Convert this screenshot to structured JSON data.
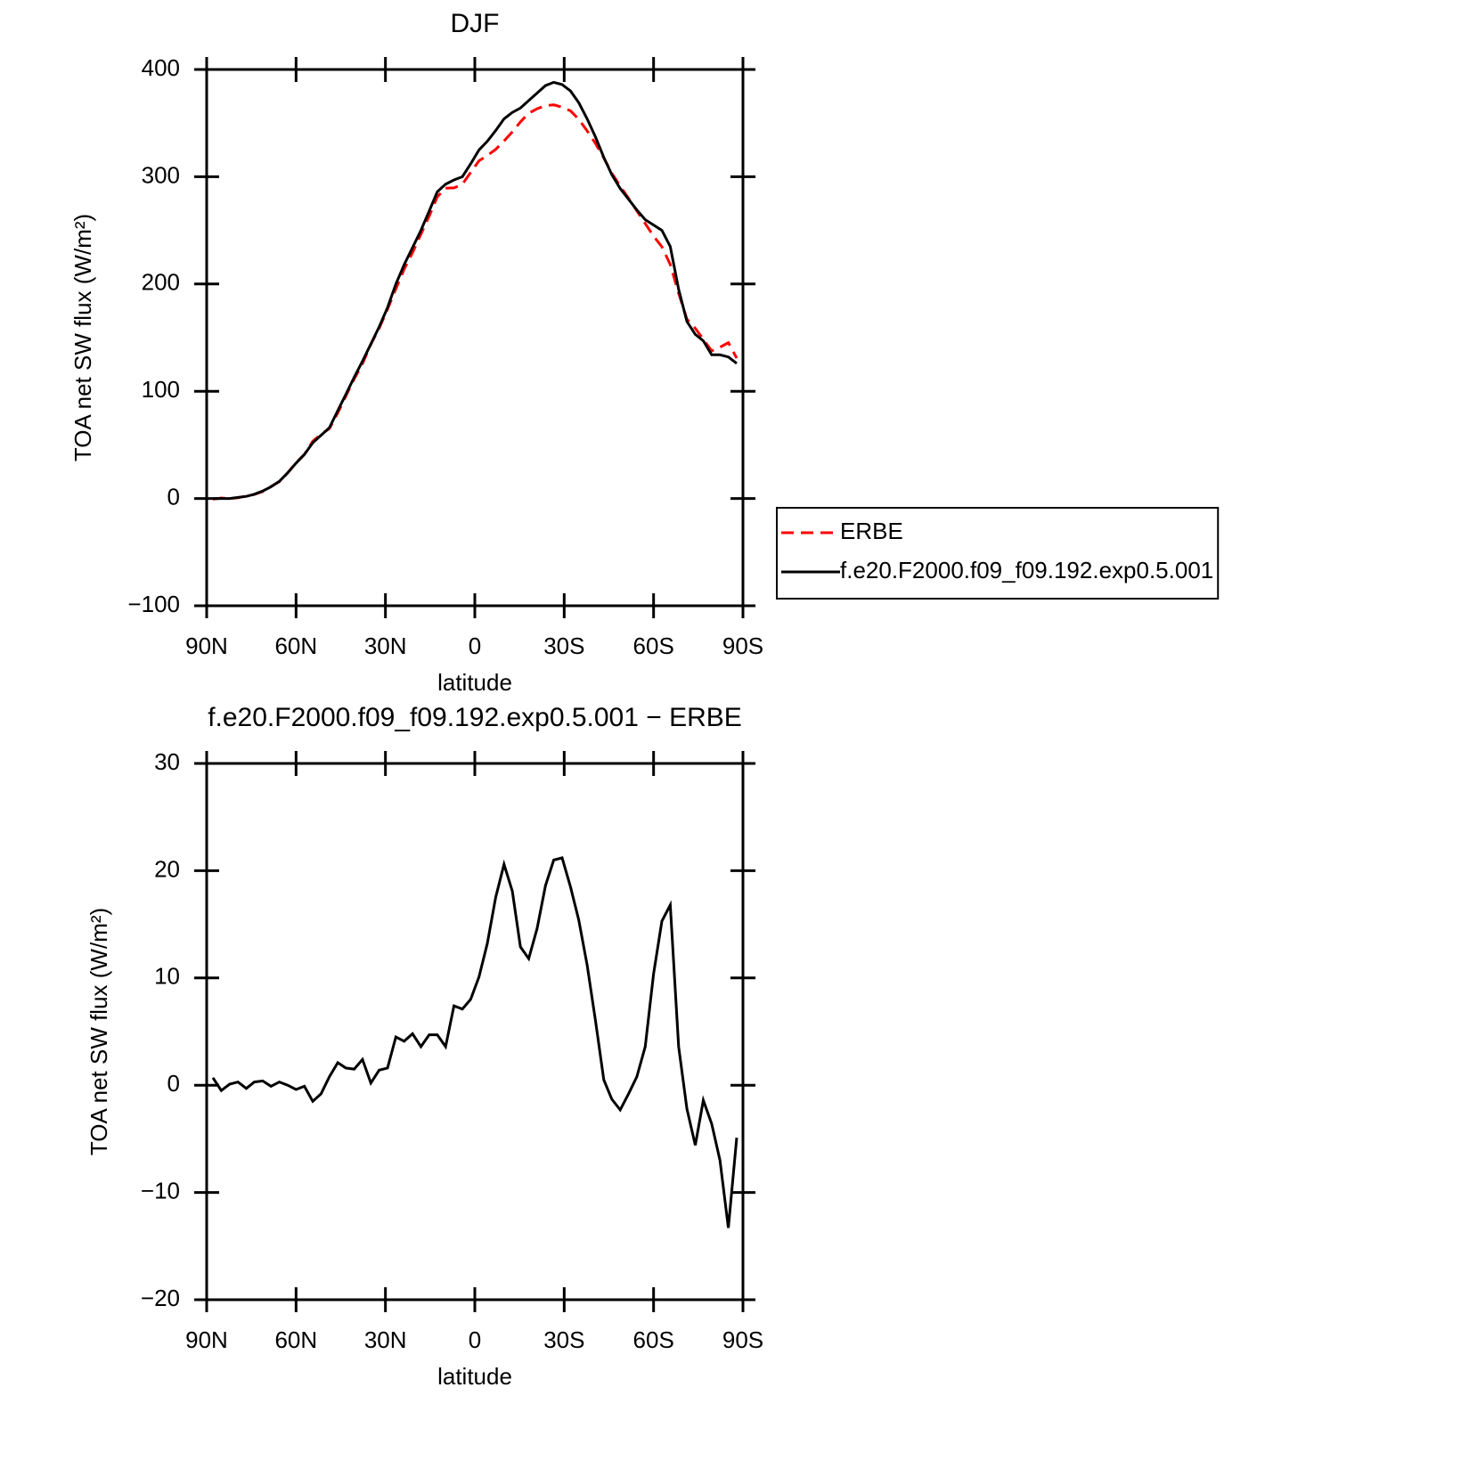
{
  "chart_data": [
    {
      "type": "line",
      "title": "DJF",
      "ylabel": "TOA net SW flux (W/m²)",
      "xlabel": "latitude",
      "x": [
        87.9,
        85.1,
        82.3,
        79.5,
        76.7,
        74.0,
        71.2,
        68.4,
        65.6,
        62.8,
        60.0,
        57.2,
        54.4,
        51.6,
        48.8,
        46.0,
        43.3,
        40.5,
        37.7,
        34.9,
        32.1,
        29.3,
        26.5,
        23.7,
        20.9,
        18.1,
        15.3,
        12.6,
        9.8,
        7.0,
        4.2,
        1.4,
        -1.4,
        -4.2,
        -7.0,
        -9.8,
        -12.6,
        -15.3,
        -18.1,
        -20.9,
        -23.7,
        -26.5,
        -29.3,
        -32.1,
        -34.9,
        -37.7,
        -40.5,
        -43.3,
        -46.0,
        -48.8,
        -51.6,
        -54.4,
        -57.2,
        -60.0,
        -62.8,
        -65.6,
        -68.4,
        -71.2,
        -74.0,
        -76.7,
        -79.5,
        -82.3,
        -85.1,
        -87.9
      ],
      "series": [
        {
          "name": "ERBE",
          "color": "#ff0000",
          "linestyle": "dashed",
          "values": [
            -0.7,
            0.5,
            -0.1,
            0.7,
            2.3,
            3.7,
            6.6,
            11.1,
            15.7,
            24,
            33.4,
            41.1,
            53.5,
            59.8,
            65.2,
            79.9,
            95.4,
            111.5,
            125.6,
            143.8,
            158.6,
            176.4,
            195.5,
            213.9,
            229.2,
            246.4,
            263.3,
            281.3,
            289.4,
            289.6,
            292.9,
            304,
            314.9,
            319.8,
            325.5,
            333.4,
            341.9,
            351.1,
            359.2,
            363.4,
            366.4,
            367,
            364.8,
            361.5,
            353.6,
            342.8,
            331,
            317.5,
            303.3,
            291.3,
            279.8,
            268.2,
            256.4,
            244.6,
            234.7,
            218.2,
            191.4,
            167.2,
            158.6,
            148.4,
            137.6,
            141,
            145.3,
            130.9
          ]
        },
        {
          "name": "f.e20.F2000.f09_f09.192.exp0.5.001",
          "color": "#000000",
          "linestyle": "solid",
          "values": [
            0,
            0,
            0,
            1,
            2,
            4,
            7,
            11,
            16,
            24,
            33,
            41,
            52,
            59,
            66,
            82,
            97,
            113,
            128,
            144,
            160,
            178,
            200,
            218,
            234,
            250,
            268,
            286,
            293,
            297,
            300,
            312,
            325,
            333,
            343,
            354,
            360,
            364,
            371,
            378,
            385,
            388,
            386,
            380,
            369,
            354,
            337,
            318,
            302,
            289,
            279,
            269,
            260,
            255,
            250,
            235,
            195,
            165,
            153,
            147,
            134,
            134,
            132,
            126
          ]
        }
      ],
      "xlim": [
        90,
        -90
      ],
      "xticks": [
        {
          "value": 90,
          "label": "90N"
        },
        {
          "value": 60,
          "label": "60N"
        },
        {
          "value": 30,
          "label": "30N"
        },
        0,
        {
          "value": -30,
          "label": "30S"
        },
        {
          "value": -60,
          "label": "60S"
        },
        {
          "value": -90,
          "label": "90S"
        }
      ],
      "ylim": [
        -100,
        400
      ],
      "yticks": [
        {
          "value": -100,
          "label": "−100"
        },
        0,
        100,
        200,
        300,
        400
      ],
      "legend": "right"
    },
    {
      "type": "line",
      "title": "f.e20.F2000.f09_f09.192.exp0.5.001 − ERBE",
      "ylabel": "TOA net SW flux (W/m²)",
      "xlabel": "latitude",
      "x": [
        87.9,
        85.1,
        82.3,
        79.5,
        76.7,
        74.0,
        71.2,
        68.4,
        65.6,
        62.8,
        60.0,
        57.2,
        54.4,
        51.6,
        48.8,
        46.0,
        43.3,
        40.5,
        37.7,
        34.9,
        32.1,
        29.3,
        26.5,
        23.7,
        20.9,
        18.1,
        15.3,
        12.6,
        9.8,
        7.0,
        4.2,
        1.4,
        -1.4,
        -4.2,
        -7.0,
        -9.8,
        -12.6,
        -15.3,
        -18.1,
        -20.9,
        -23.7,
        -26.5,
        -29.3,
        -32.1,
        -34.9,
        -37.7,
        -40.5,
        -43.3,
        -46.0,
        -48.8,
        -51.6,
        -54.4,
        -57.2,
        -60.0,
        -62.8,
        -65.6,
        -68.4,
        -71.2,
        -74.0,
        -76.7,
        -79.5,
        -82.3,
        -85.1,
        -87.9
      ],
      "values": [
        0.7,
        -0.5,
        0.1,
        0.3,
        -0.3,
        0.3,
        0.4,
        -0.1,
        0.3,
        0,
        -0.4,
        -0.1,
        -1.5,
        -0.8,
        0.8,
        2.1,
        1.6,
        1.5,
        2.4,
        0.2,
        1.4,
        1.6,
        4.5,
        4.1,
        4.8,
        3.6,
        4.7,
        4.7,
        3.6,
        7.4,
        7.1,
        8.0,
        10.1,
        13.2,
        17.5,
        20.6,
        18.1,
        12.9,
        11.8,
        14.6,
        18.6,
        21.0,
        21.2,
        18.5,
        15.4,
        11.2,
        6.0,
        0.5,
        -1.3,
        -2.3,
        -0.8,
        0.8,
        3.6,
        10.4,
        15.3,
        16.8,
        3.6,
        -2.2,
        -5.6,
        -1.4,
        -3.6,
        -7.0,
        -13.3,
        -4.9
      ],
      "color": "#000000",
      "xlim": [
        90,
        -90
      ],
      "xticks": [
        {
          "value": 90,
          "label": "90N"
        },
        {
          "value": 60,
          "label": "60N"
        },
        {
          "value": 30,
          "label": "30N"
        },
        0,
        {
          "value": -30,
          "label": "30S"
        },
        {
          "value": -60,
          "label": "60S"
        },
        {
          "value": -90,
          "label": "90S"
        }
      ],
      "ylim": [
        -20,
        30
      ],
      "yticks": [
        {
          "value": -20,
          "label": "−20"
        },
        {
          "value": -10,
          "label": "−10"
        },
        0,
        10,
        20,
        30
      ]
    }
  ]
}
